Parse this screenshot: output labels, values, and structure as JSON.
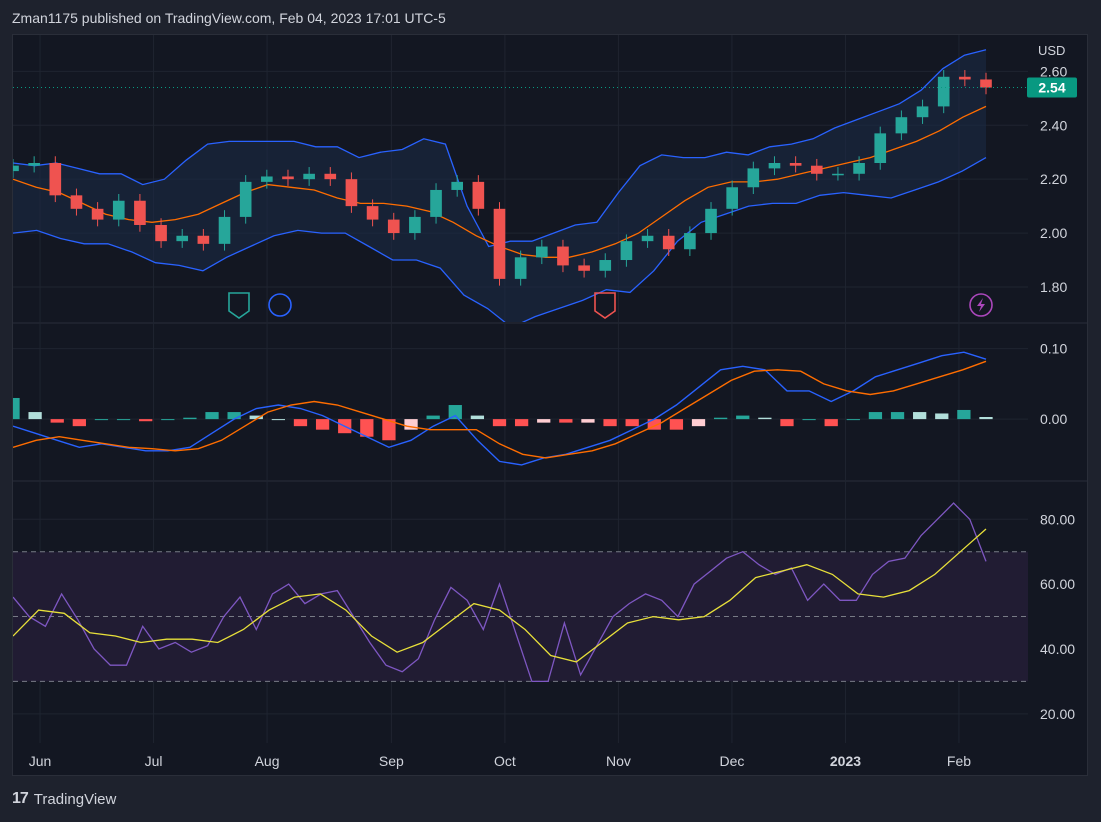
{
  "header": {
    "text": "Zman1175 published on TradingView.com, Feb 04, 2023 17:01 UTC-5"
  },
  "footer": {
    "logo_glyph": "17",
    "brand": "TradingView"
  },
  "colors": {
    "background": "#131722",
    "grid": "#1f2430",
    "up": "#26a69a",
    "down": "#ef5350",
    "bb_band": "#2962ff",
    "bb_basis": "#ff6d00",
    "bb_fill": "#1a2a44",
    "macd_line": "#2962ff",
    "signal_line": "#ff6d00",
    "hist_up_strong": "#26a69a",
    "hist_up_weak": "#b2dfdb",
    "hist_down_strong": "#ff5252",
    "hist_down_weak": "#ffcdd2",
    "rsi_line": "#7e57c2",
    "rsi_ma": "#e8e03a",
    "rsi_band_fill": "#211c33",
    "price_tag": "#089981",
    "axis_text": "#d1d4dc"
  },
  "chart_data": [
    {
      "type": "candlestick",
      "panel": "price",
      "currency": "USD",
      "last_price_label": "2.54",
      "y_ticks": [
        1.8,
        2.0,
        2.2,
        2.4,
        2.6
      ],
      "y_tick_labels": [
        "1.80",
        "2.00",
        "2.20",
        "2.40",
        "2.60"
      ],
      "ylim": [
        1.67,
        2.735
      ],
      "x_ticks": [
        "Jun",
        "Jul",
        "Aug",
        "Sep",
        "Oct",
        "Nov",
        "Dec",
        "2023",
        "Feb"
      ],
      "x_tick_index": [
        5,
        26,
        47,
        70,
        91,
        112,
        133,
        154,
        175
      ],
      "weekly_close": [
        2.25,
        2.26,
        2.14,
        2.09,
        2.05,
        2.12,
        2.03,
        1.97,
        1.99,
        1.96,
        2.06,
        2.19,
        2.21,
        2.2,
        2.22,
        2.2,
        2.1,
        2.05,
        2.0,
        2.06,
        2.16,
        2.19,
        2.09,
        1.83,
        1.91,
        1.95,
        1.88,
        1.86,
        1.9,
        1.97,
        1.99,
        1.94,
        2.0,
        2.09,
        2.17,
        2.24,
        2.26,
        2.25,
        2.22,
        2.22,
        2.26,
        2.37,
        2.43,
        2.47,
        2.58,
        2.57,
        2.54
      ],
      "bb_upper": [
        2.26,
        2.25,
        2.26,
        2.24,
        2.22,
        2.22,
        2.18,
        2.2,
        2.27,
        2.33,
        2.34,
        2.34,
        2.34,
        2.34,
        2.32,
        2.32,
        2.28,
        2.3,
        2.31,
        2.35,
        2.33,
        2.1,
        1.95,
        1.97,
        1.97,
        2.0,
        2.03,
        2.04,
        2.15,
        2.25,
        2.29,
        2.28,
        2.28,
        2.3,
        2.29,
        2.32,
        2.33,
        2.35,
        2.39,
        2.42,
        2.45,
        2.48,
        2.53,
        2.61,
        2.66,
        2.68
      ],
      "bb_basis": [
        2.2,
        2.17,
        2.15,
        2.11,
        2.07,
        2.05,
        2.04,
        2.05,
        2.07,
        2.11,
        2.15,
        2.18,
        2.17,
        2.16,
        2.13,
        2.11,
        2.11,
        2.1,
        2.08,
        2.04,
        1.99,
        1.95,
        1.92,
        1.91,
        1.91,
        1.93,
        1.96,
        2.0,
        2.06,
        2.12,
        2.17,
        2.19,
        2.19,
        2.2,
        2.22,
        2.24,
        2.26,
        2.28,
        2.31,
        2.34,
        2.38,
        2.43,
        2.47
      ],
      "bb_lower": [
        2.0,
        2.01,
        1.98,
        1.96,
        1.96,
        1.93,
        1.89,
        1.88,
        1.86,
        1.91,
        1.95,
        1.99,
        2.01,
        2.0,
        2.0,
        1.95,
        1.9,
        1.9,
        1.87,
        1.77,
        1.72,
        1.65,
        1.69,
        1.72,
        1.75,
        1.79,
        1.78,
        1.86,
        1.97,
        2.04,
        2.07,
        2.1,
        2.11,
        2.11,
        2.14,
        2.15,
        2.14,
        2.13,
        2.16,
        2.19,
        2.23,
        2.28
      ]
    },
    {
      "type": "macd",
      "panel": "macd",
      "y_ticks": [
        0.0,
        0.1
      ],
      "y_tick_labels": [
        "0.00",
        "0.10"
      ],
      "ylim": [
        -0.085,
        0.135
      ],
      "macd": [
        -0.01,
        -0.02,
        -0.03,
        -0.04,
        -0.035,
        -0.04,
        -0.045,
        -0.045,
        -0.04,
        -0.02,
        0.0,
        0.015,
        0.02,
        0.015,
        0.005,
        -0.01,
        -0.025,
        -0.04,
        -0.03,
        -0.01,
        0.005,
        -0.03,
        -0.06,
        -0.065,
        -0.055,
        -0.05,
        -0.04,
        -0.03,
        -0.015,
        0.0,
        0.02,
        0.045,
        0.07,
        0.075,
        0.07,
        0.04,
        0.04,
        0.025,
        0.04,
        0.06,
        0.07,
        0.08,
        0.09,
        0.095,
        0.085
      ],
      "signal": [
        -0.04,
        -0.03,
        -0.025,
        -0.03,
        -0.035,
        -0.04,
        -0.042,
        -0.045,
        -0.042,
        -0.03,
        -0.01,
        0.01,
        0.02,
        0.025,
        0.02,
        0.01,
        0.0,
        -0.01,
        -0.015,
        -0.015,
        -0.015,
        -0.035,
        -0.05,
        -0.055,
        -0.05,
        -0.045,
        -0.035,
        -0.02,
        -0.005,
        0.015,
        0.035,
        0.055,
        0.068,
        0.07,
        0.068,
        0.05,
        0.04,
        0.035,
        0.04,
        0.05,
        0.06,
        0.07,
        0.082
      ]
    },
    {
      "type": "rsi",
      "panel": "rsi",
      "y_ticks": [
        20,
        40,
        60,
        80
      ],
      "y_tick_labels": [
        "20.00",
        "40.00",
        "60.00",
        "80.00"
      ],
      "ylim": [
        11,
        91.5
      ],
      "band_upper": 70,
      "band_middle": 50,
      "band_lower": 30,
      "rsi": [
        56,
        50,
        47,
        57,
        49,
        40,
        35,
        35,
        47,
        40,
        42,
        39,
        41,
        50,
        56,
        46,
        57,
        60,
        54,
        57,
        58,
        50,
        42,
        35,
        33,
        37,
        49,
        59,
        55,
        46,
        60,
        45,
        30,
        30,
        48,
        32,
        41,
        50,
        54,
        57,
        55,
        50,
        60,
        64,
        68,
        70,
        66,
        63,
        65,
        55,
        60,
        55,
        55,
        63,
        67,
        68,
        75,
        80,
        85,
        80,
        67
      ],
      "rsi_ma": [
        44,
        52,
        51,
        45,
        44,
        42,
        43,
        43,
        42,
        46,
        52,
        56,
        57,
        52,
        44,
        39,
        42,
        48,
        54,
        52,
        46,
        38,
        36,
        42,
        48,
        50,
        49,
        50,
        55,
        62,
        64,
        66,
        63,
        57,
        56,
        58,
        63,
        70,
        77
      ]
    }
  ]
}
